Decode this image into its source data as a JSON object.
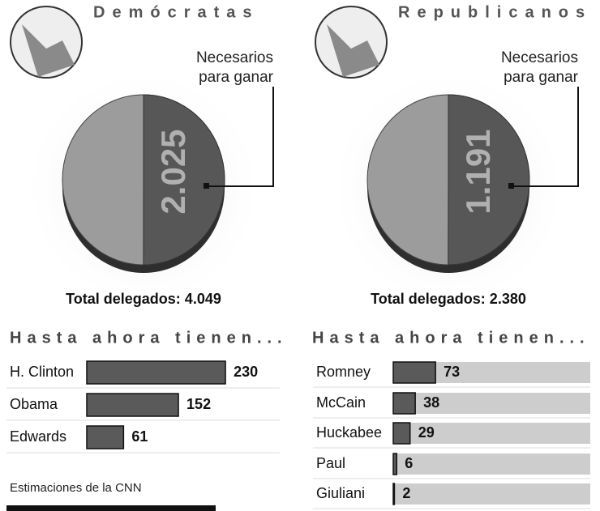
{
  "chart_data": [
    {
      "type": "pie",
      "title": "Demócratas",
      "values": [
        2025
      ],
      "value_labels": [
        "2.025"
      ],
      "total": 4049,
      "total_label": "Total delegados: 4.049",
      "annotation": [
        "Necesarios",
        "para ganar"
      ],
      "colors": [
        "#575757",
        "#9c9c9c"
      ]
    },
    {
      "type": "pie",
      "title": "Republicanos",
      "values": [
        1191
      ],
      "value_labels": [
        "1.191"
      ],
      "total": 2380,
      "total_label": "Total delegados: 2.380",
      "annotation": [
        "Necesarios",
        "para ganar"
      ],
      "colors": [
        "#575757",
        "#9c9c9c"
      ]
    },
    {
      "type": "bar",
      "orientation": "horizontal",
      "title": "Hasta ahora tienen...",
      "categories": [
        "H. Clinton",
        "Obama",
        "Edwards"
      ],
      "values": [
        230,
        152,
        61
      ],
      "xlim": [
        0,
        320
      ],
      "color": "#5a5a5a",
      "note": "Estimaciones de la CNN"
    },
    {
      "type": "bar",
      "orientation": "horizontal",
      "title": "Hasta ahora tienen...",
      "categories": [
        "Romney",
        "McCain",
        "Huckabee",
        "Paul",
        "Giuliani"
      ],
      "values": [
        73,
        38,
        29,
        6,
        2
      ],
      "xlim": [
        0,
        340
      ],
      "color": "#5a5a5a",
      "track": true,
      "track_color": "#cdcdcd"
    }
  ]
}
